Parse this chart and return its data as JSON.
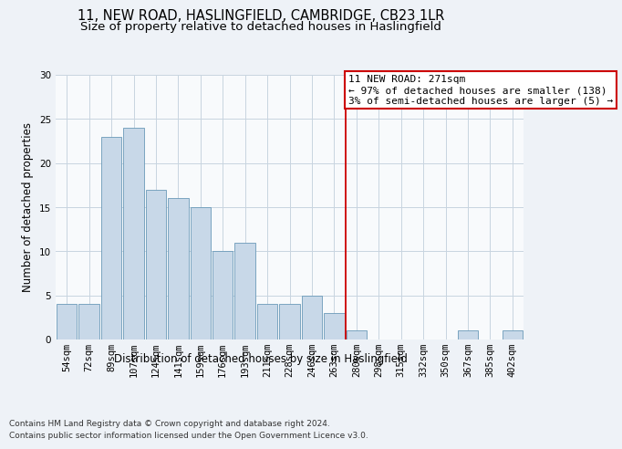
{
  "title": "11, NEW ROAD, HASLINGFIELD, CAMBRIDGE, CB23 1LR",
  "subtitle": "Size of property relative to detached houses in Haslingfield",
  "xlabel": "Distribution of detached houses by size in Haslingfield",
  "ylabel": "Number of detached properties",
  "footer_line1": "Contains HM Land Registry data © Crown copyright and database right 2024.",
  "footer_line2": "Contains public sector information licensed under the Open Government Licence v3.0.",
  "categories": [
    "54sqm",
    "72sqm",
    "89sqm",
    "107sqm",
    "124sqm",
    "141sqm",
    "159sqm",
    "176sqm",
    "193sqm",
    "211sqm",
    "228sqm",
    "246sqm",
    "263sqm",
    "280sqm",
    "298sqm",
    "315sqm",
    "332sqm",
    "350sqm",
    "367sqm",
    "385sqm",
    "402sqm"
  ],
  "values": [
    4,
    4,
    23,
    24,
    17,
    16,
    15,
    10,
    11,
    4,
    4,
    5,
    3,
    1,
    0,
    0,
    0,
    0,
    1,
    0,
    1
  ],
  "bar_color": "#c8d8e8",
  "bar_edge_color": "#6a9ab8",
  "vline_index": 12.5,
  "annotation_title": "11 NEW ROAD: 271sqm",
  "annotation_line1": "← 97% of detached houses are smaller (138)",
  "annotation_line2": "3% of semi-detached houses are larger (5) →",
  "vline_color": "#cc0000",
  "annotation_box_color": "#cc0000",
  "ylim": [
    0,
    30
  ],
  "yticks": [
    0,
    5,
    10,
    15,
    20,
    25,
    30
  ],
  "background_color": "#eef2f7",
  "plot_background_color": "#f8fafc",
  "grid_color": "#c8d4e0",
  "title_fontsize": 10.5,
  "subtitle_fontsize": 9.5,
  "ylabel_fontsize": 8.5,
  "xlabel_fontsize": 8.5,
  "tick_fontsize": 7.5,
  "footer_fontsize": 6.5,
  "annotation_fontsize": 8.0
}
